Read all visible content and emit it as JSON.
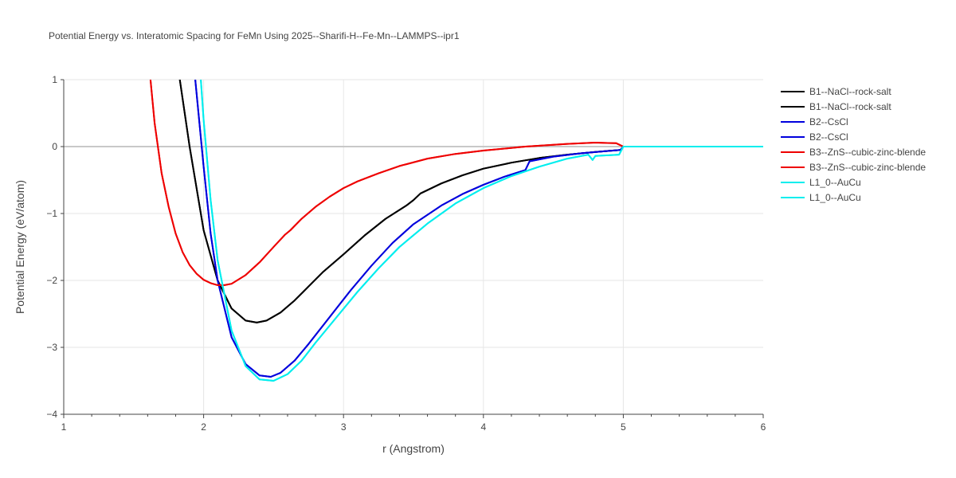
{
  "chart_data": {
    "type": "line",
    "title": "Potential Energy vs. Interatomic Spacing for FeMn Using 2025--Sharifi-H--Fe-Mn--LAMMPS--ipr1",
    "xlabel": "r (Angstrom)",
    "ylabel": "Potential Energy (eV/atom)",
    "xlim": [
      1,
      6
    ],
    "ylim": [
      -4,
      1
    ],
    "xticks": [
      "1",
      "2",
      "3",
      "4",
      "5",
      "6"
    ],
    "yticks": [
      "−4",
      "−3",
      "−2",
      "−1",
      "0",
      "1"
    ],
    "grid": true,
    "legend_position": "right",
    "series": [
      {
        "name": "B1--NaCl--rock-salt",
        "color": "#000000",
        "x": [
          1.83,
          1.9,
          2.0,
          2.1,
          2.2,
          2.3,
          2.38,
          2.45,
          2.55,
          2.65,
          2.75,
          2.85,
          3.0,
          3.15,
          3.3,
          3.45,
          3.5,
          3.55,
          3.7,
          3.85,
          4.0,
          4.2,
          4.4,
          4.6,
          4.8,
          4.98,
          5.0,
          6.0
        ],
        "y": [
          1.0,
          0.0,
          -1.25,
          -2.0,
          -2.42,
          -2.6,
          -2.63,
          -2.6,
          -2.48,
          -2.3,
          -2.09,
          -1.88,
          -1.61,
          -1.33,
          -1.08,
          -0.88,
          -0.8,
          -0.7,
          -0.55,
          -0.43,
          -0.33,
          -0.24,
          -0.17,
          -0.12,
          -0.08,
          -0.05,
          0.0,
          0.0
        ]
      },
      {
        "name": "B1--NaCl--rock-salt",
        "color": "#000000",
        "x": [
          1.83,
          1.9,
          2.0,
          2.1,
          2.2,
          2.3,
          2.38,
          2.45,
          2.55,
          2.65,
          2.75,
          2.85,
          3.0,
          3.15,
          3.3,
          3.45,
          3.5,
          3.55,
          3.7,
          3.85,
          4.0,
          4.2,
          4.4,
          4.6,
          4.8,
          4.98,
          5.0,
          6.0
        ],
        "y": [
          1.0,
          0.0,
          -1.25,
          -2.0,
          -2.42,
          -2.6,
          -2.63,
          -2.6,
          -2.48,
          -2.3,
          -2.09,
          -1.88,
          -1.61,
          -1.33,
          -1.08,
          -0.88,
          -0.8,
          -0.7,
          -0.55,
          -0.43,
          -0.33,
          -0.24,
          -0.17,
          -0.12,
          -0.08,
          -0.05,
          0.0,
          0.0
        ]
      },
      {
        "name": "B2--CsCl",
        "color": "#0000dd",
        "x": [
          1.94,
          2.0,
          2.05,
          2.1,
          2.2,
          2.3,
          2.4,
          2.48,
          2.55,
          2.65,
          2.75,
          2.9,
          3.05,
          3.2,
          3.35,
          3.5,
          3.7,
          3.85,
          4.0,
          4.15,
          4.3,
          4.33,
          4.5,
          4.7,
          4.98,
          5.0,
          6.0
        ],
        "y": [
          1.0,
          -0.3,
          -1.3,
          -2.0,
          -2.85,
          -3.25,
          -3.42,
          -3.44,
          -3.38,
          -3.2,
          -2.95,
          -2.55,
          -2.15,
          -1.78,
          -1.44,
          -1.16,
          -0.88,
          -0.71,
          -0.57,
          -0.45,
          -0.35,
          -0.22,
          -0.15,
          -0.1,
          -0.05,
          0.0,
          0.0
        ]
      },
      {
        "name": "B2--CsCl",
        "color": "#0000dd",
        "x": [
          1.94,
          2.0,
          2.05,
          2.1,
          2.2,
          2.3,
          2.4,
          2.48,
          2.55,
          2.65,
          2.75,
          2.9,
          3.05,
          3.2,
          3.35,
          3.5,
          3.7,
          3.85,
          4.0,
          4.15,
          4.3,
          4.33,
          4.5,
          4.7,
          4.98,
          5.0,
          6.0
        ],
        "y": [
          1.0,
          -0.3,
          -1.3,
          -2.0,
          -2.85,
          -3.25,
          -3.42,
          -3.44,
          -3.38,
          -3.2,
          -2.95,
          -2.55,
          -2.15,
          -1.78,
          -1.44,
          -1.16,
          -0.88,
          -0.71,
          -0.57,
          -0.45,
          -0.35,
          -0.22,
          -0.15,
          -0.1,
          -0.05,
          0.0,
          0.0
        ]
      },
      {
        "name": "B3--ZnS--cubic-zinc-blende",
        "color": "#ee0000",
        "x": [
          1.62,
          1.65,
          1.7,
          1.75,
          1.8,
          1.85,
          1.9,
          1.95,
          2.0,
          2.05,
          2.1,
          2.15,
          2.2,
          2.3,
          2.4,
          2.5,
          2.58,
          2.62,
          2.7,
          2.8,
          2.9,
          3.0,
          3.1,
          3.25,
          3.4,
          3.6,
          3.8,
          4.0,
          4.3,
          4.6,
          4.8,
          4.95,
          5.0,
          6.0
        ],
        "y": [
          1.0,
          0.35,
          -0.4,
          -0.9,
          -1.3,
          -1.58,
          -1.77,
          -1.9,
          -1.99,
          -2.04,
          -2.07,
          -2.07,
          -2.05,
          -1.92,
          -1.73,
          -1.5,
          -1.32,
          -1.25,
          -1.08,
          -0.9,
          -0.75,
          -0.62,
          -0.52,
          -0.4,
          -0.29,
          -0.18,
          -0.11,
          -0.06,
          0.0,
          0.04,
          0.06,
          0.05,
          0.0,
          0.0
        ]
      },
      {
        "name": "B3--ZnS--cubic-zinc-blende",
        "color": "#ee0000",
        "x": [
          1.62,
          1.65,
          1.7,
          1.75,
          1.8,
          1.85,
          1.9,
          1.95,
          2.0,
          2.05,
          2.1,
          2.15,
          2.2,
          2.3,
          2.4,
          2.5,
          2.58,
          2.62,
          2.7,
          2.8,
          2.9,
          3.0,
          3.1,
          3.25,
          3.4,
          3.6,
          3.8,
          4.0,
          4.3,
          4.6,
          4.8,
          4.95,
          5.0,
          6.0
        ],
        "y": [
          1.0,
          0.35,
          -0.4,
          -0.9,
          -1.3,
          -1.58,
          -1.77,
          -1.9,
          -1.99,
          -2.04,
          -2.07,
          -2.07,
          -2.05,
          -1.92,
          -1.73,
          -1.5,
          -1.32,
          -1.25,
          -1.08,
          -0.9,
          -0.75,
          -0.62,
          -0.52,
          -0.4,
          -0.29,
          -0.18,
          -0.11,
          -0.06,
          0.0,
          0.04,
          0.06,
          0.05,
          0.0,
          0.0
        ]
      },
      {
        "name": "L1_0--AuCu",
        "color": "#00eeee",
        "x": [
          1.98,
          2.0,
          2.05,
          2.1,
          2.2,
          2.3,
          2.4,
          2.5,
          2.6,
          2.7,
          2.8,
          2.95,
          3.1,
          3.25,
          3.4,
          3.6,
          3.8,
          4.0,
          4.2,
          4.4,
          4.6,
          4.75,
          4.78,
          4.8,
          4.97,
          5.0,
          6.0
        ],
        "y": [
          1.0,
          0.4,
          -0.8,
          -1.7,
          -2.75,
          -3.28,
          -3.48,
          -3.5,
          -3.4,
          -3.2,
          -2.93,
          -2.55,
          -2.17,
          -1.82,
          -1.5,
          -1.15,
          -0.85,
          -0.62,
          -0.44,
          -0.3,
          -0.18,
          -0.12,
          -0.2,
          -0.14,
          -0.12,
          0.0,
          0.0
        ]
      },
      {
        "name": "L1_0--AuCu",
        "color": "#00eeee",
        "x": [
          1.98,
          2.0,
          2.05,
          2.1,
          2.2,
          2.3,
          2.4,
          2.5,
          2.6,
          2.7,
          2.8,
          2.95,
          3.1,
          3.25,
          3.4,
          3.6,
          3.8,
          4.0,
          4.2,
          4.4,
          4.6,
          4.75,
          4.78,
          4.8,
          4.97,
          5.0,
          6.0
        ],
        "y": [
          1.0,
          0.4,
          -0.8,
          -1.7,
          -2.75,
          -3.28,
          -3.48,
          -3.5,
          -3.4,
          -3.2,
          -2.93,
          -2.55,
          -2.17,
          -1.82,
          -1.5,
          -1.15,
          -0.85,
          -0.62,
          -0.44,
          -0.3,
          -0.18,
          -0.12,
          -0.2,
          -0.14,
          -0.12,
          0.0,
          0.0
        ]
      }
    ]
  }
}
